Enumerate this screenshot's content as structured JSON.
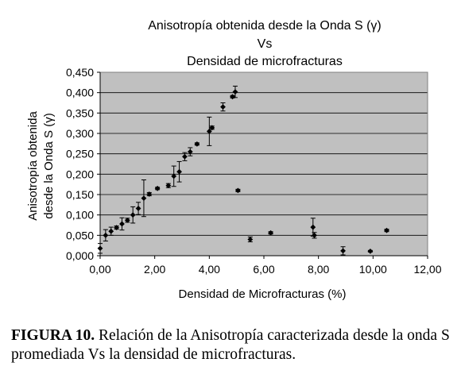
{
  "chart_data": {
    "type": "scatter",
    "title_lines": [
      "Anisotropía obtenida desde la Onda S (γ)",
      "Vs",
      "Densidad de microfracturas"
    ],
    "xlabel": "Densidad de Microfracturas (%)",
    "ylabel_lines": [
      "Anisotropía obtenida",
      "desde la Onda S (γ)"
    ],
    "xlim": [
      0,
      12
    ],
    "ylim": [
      0,
      0.45
    ],
    "x_ticks": [
      "0,00",
      "2,00",
      "4,00",
      "6,00",
      "8,00",
      "10,00",
      "12,00"
    ],
    "y_ticks": [
      "0,000",
      "0,050",
      "0,100",
      "0,150",
      "0,200",
      "0,250",
      "0,300",
      "0,350",
      "0,400",
      "0,450"
    ],
    "grid": "horizontal",
    "legend": "none",
    "plot_background": "#c0c0c0",
    "marker_color": "#000000",
    "points": [
      {
        "x": 0.0,
        "y": 0.018,
        "err": 0.012
      },
      {
        "x": 0.2,
        "y": 0.05,
        "err": 0.014
      },
      {
        "x": 0.4,
        "y": 0.06,
        "err": 0.01
      },
      {
        "x": 0.6,
        "y": 0.069,
        "err": 0.004
      },
      {
        "x": 0.8,
        "y": 0.078,
        "err": 0.015
      },
      {
        "x": 1.0,
        "y": 0.087,
        "err": 0.005
      },
      {
        "x": 1.2,
        "y": 0.1,
        "err": 0.02
      },
      {
        "x": 1.4,
        "y": 0.116,
        "err": 0.015
      },
      {
        "x": 1.6,
        "y": 0.141,
        "err": 0.045
      },
      {
        "x": 1.8,
        "y": 0.151,
        "err": 0.004
      },
      {
        "x": 2.1,
        "y": 0.165,
        "err": 0.003
      },
      {
        "x": 2.5,
        "y": 0.172,
        "err": 0.005
      },
      {
        "x": 2.7,
        "y": 0.195,
        "err": 0.025
      },
      {
        "x": 2.9,
        "y": 0.206,
        "err": 0.025
      },
      {
        "x": 3.1,
        "y": 0.243,
        "err": 0.01
      },
      {
        "x": 3.3,
        "y": 0.255,
        "err": 0.01
      },
      {
        "x": 3.55,
        "y": 0.274,
        "err": 0.003
      },
      {
        "x": 4.0,
        "y": 0.305,
        "err": 0.035
      },
      {
        "x": 4.1,
        "y": 0.314,
        "err": 0.004
      },
      {
        "x": 4.5,
        "y": 0.365,
        "err": 0.01
      },
      {
        "x": 4.85,
        "y": 0.39,
        "err": 0.003
      },
      {
        "x": 4.95,
        "y": 0.402,
        "err": 0.014
      },
      {
        "x": 5.05,
        "y": 0.16,
        "err": 0.003
      },
      {
        "x": 5.5,
        "y": 0.04,
        "err": 0.006
      },
      {
        "x": 6.25,
        "y": 0.056,
        "err": 0.003
      },
      {
        "x": 7.8,
        "y": 0.07,
        "err": 0.022
      },
      {
        "x": 7.85,
        "y": 0.05,
        "err": 0.007
      },
      {
        "x": 8.9,
        "y": 0.012,
        "err": 0.01
      },
      {
        "x": 9.9,
        "y": 0.011,
        "err": 0.002
      },
      {
        "x": 10.5,
        "y": 0.062,
        "err": 0.003
      }
    ]
  },
  "caption": {
    "label": "FIGURA 10.",
    "text": " Relación de la Anisotropía caracterizada desde la onda S promediada Vs la densidad de microfracturas."
  }
}
